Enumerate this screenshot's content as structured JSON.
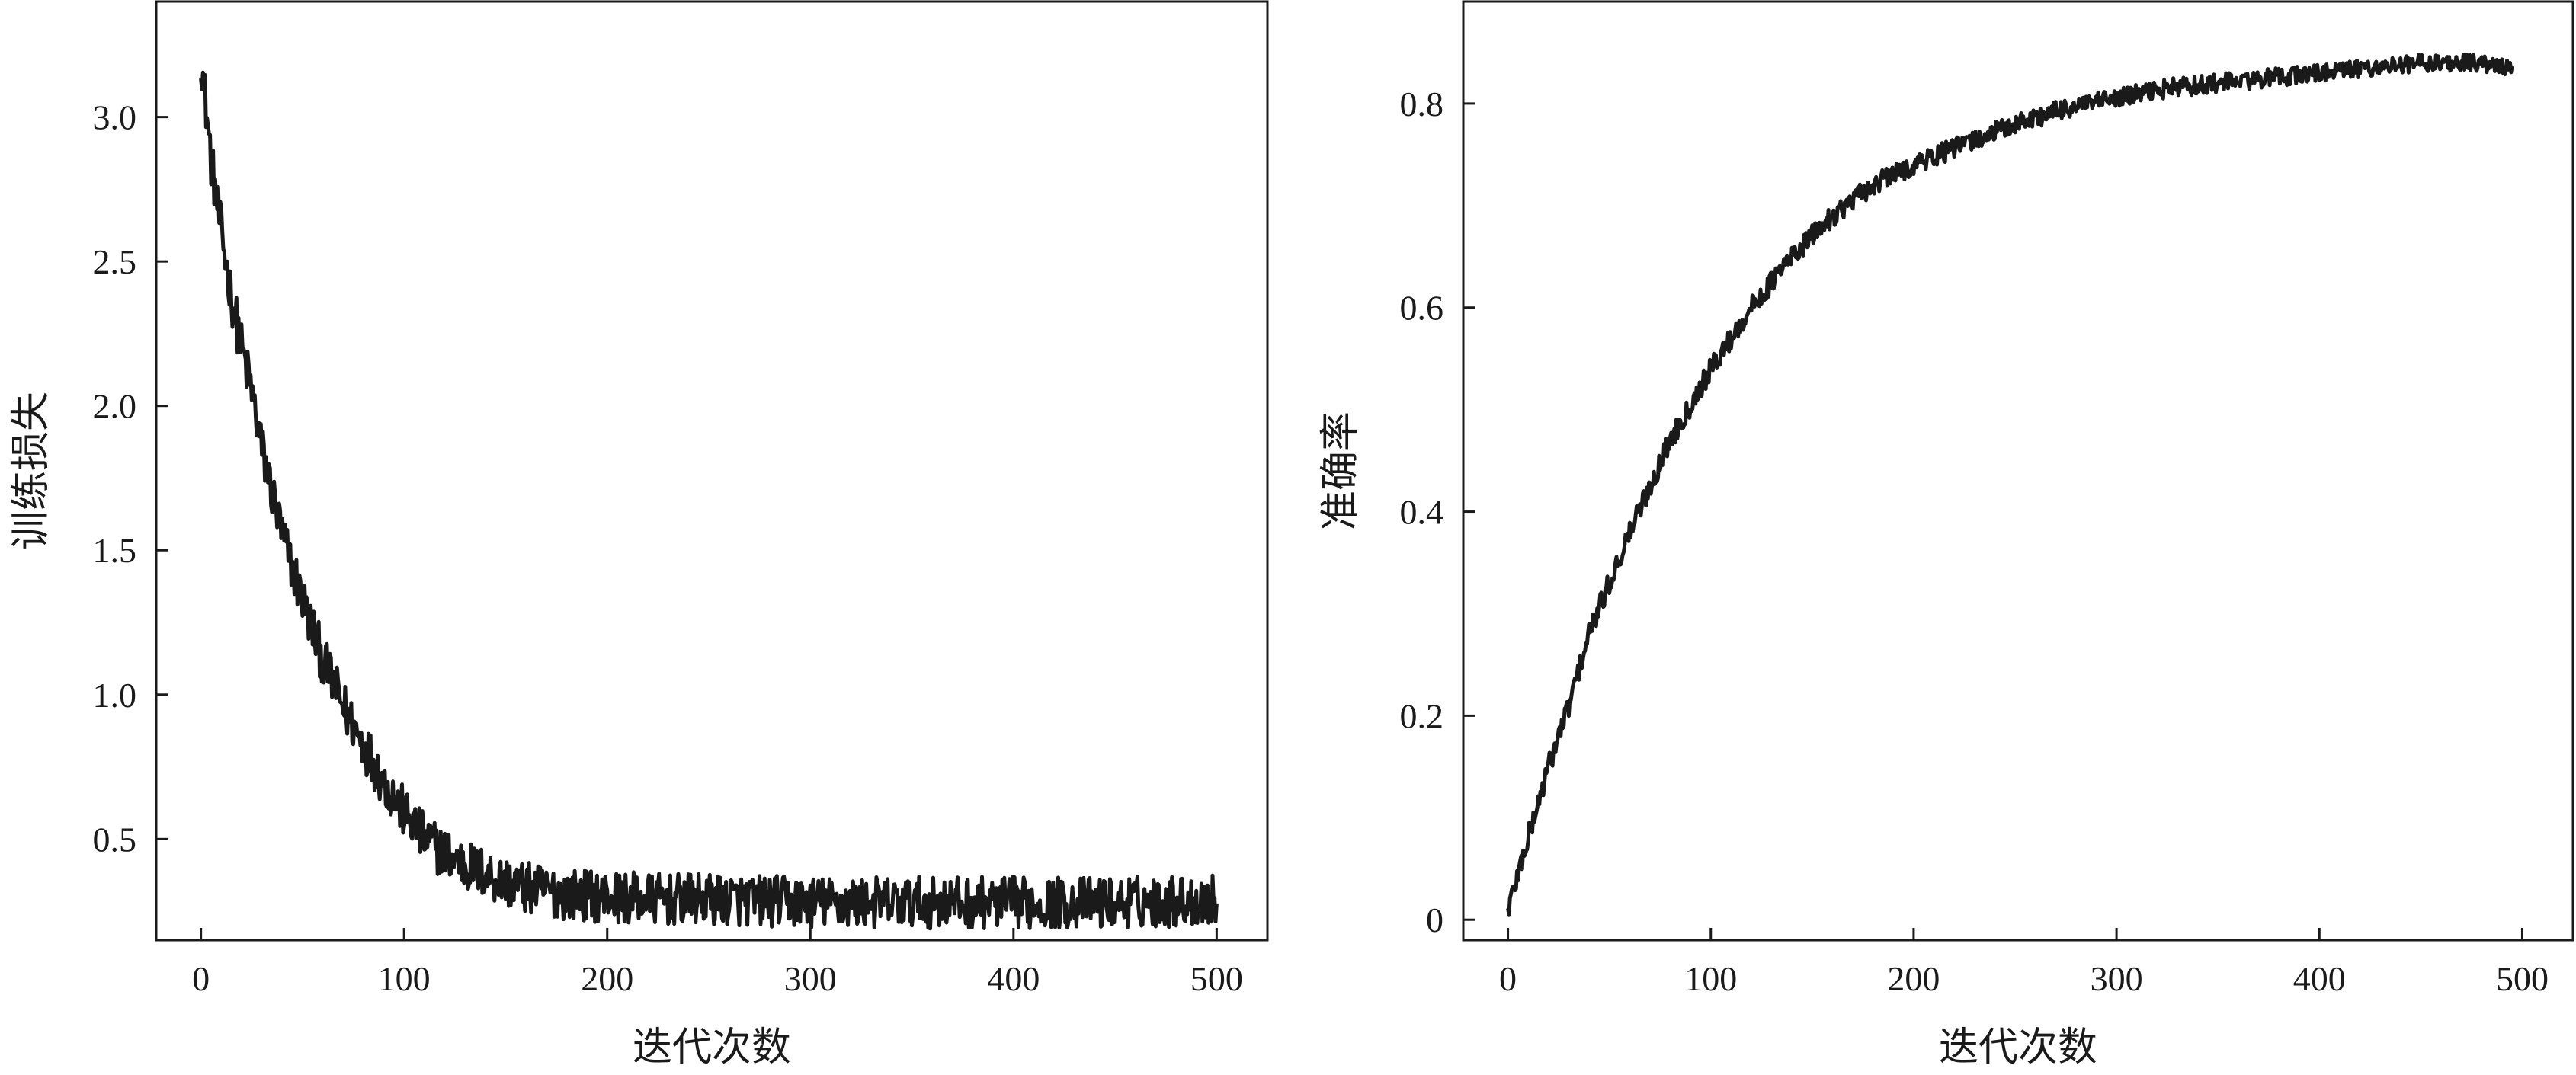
{
  "chart_data": [
    {
      "type": "line",
      "title": "",
      "xlabel": "迭代次数",
      "ylabel": "训练损失",
      "xlim": [
        -22,
        525
      ],
      "ylim": [
        0.15,
        3.4
      ],
      "xticks": [
        0,
        100,
        200,
        300,
        400,
        500
      ],
      "xtick_labels": [
        "0",
        "100",
        "200",
        "300",
        "400",
        "500"
      ],
      "yticks": [
        0.5,
        1.0,
        1.5,
        2.0,
        2.5,
        3.0
      ],
      "ytick_labels": [
        "0.5",
        "1.0",
        "1.5",
        "2.0",
        "2.5",
        "3.0"
      ],
      "grid": false,
      "legend": "none",
      "line_color": "#1a1a1a",
      "trend": {
        "x": [
          0,
          5,
          10,
          15,
          20,
          25,
          30,
          40,
          50,
          60,
          70,
          80,
          90,
          100,
          110,
          120,
          130,
          140,
          150,
          160,
          170,
          180,
          200,
          230,
          260,
          300,
          350,
          400,
          450,
          500
        ],
        "y": [
          3.22,
          2.85,
          2.6,
          2.38,
          2.2,
          2.05,
          1.85,
          1.55,
          1.33,
          1.12,
          0.96,
          0.83,
          0.7,
          0.59,
          0.5,
          0.45,
          0.41,
          0.38,
          0.35,
          0.33,
          0.32,
          0.31,
          0.3,
          0.29,
          0.29,
          0.28,
          0.28,
          0.28,
          0.28,
          0.29
        ]
      },
      "noise": {
        "start": 0.09,
        "end": 0.09
      }
    },
    {
      "type": "line",
      "title": "",
      "xlabel": "迭代次数",
      "ylabel": "准确率",
      "xlim": [
        -22,
        525
      ],
      "ylim": [
        -0.02,
        0.9
      ],
      "xticks": [
        0,
        100,
        200,
        300,
        400,
        500
      ],
      "xtick_labels": [
        "0",
        "100",
        "200",
        "300",
        "400",
        "500"
      ],
      "yticks": [
        0,
        0.2,
        0.4,
        0.6,
        0.8
      ],
      "ytick_labels": [
        "0",
        "0.2",
        "0.4",
        "0.6",
        "0.8"
      ],
      "grid": false,
      "legend": "none",
      "line_color": "#1a1a1a",
      "trend": {
        "x": [
          0,
          10,
          20,
          30,
          40,
          50,
          60,
          80,
          100,
          120,
          140,
          160,
          180,
          200,
          225,
          250,
          275,
          300,
          325,
          350,
          375,
          400,
          425,
          450,
          475,
          495
        ],
        "y": [
          0.01,
          0.08,
          0.15,
          0.21,
          0.28,
          0.33,
          0.38,
          0.47,
          0.54,
          0.6,
          0.65,
          0.69,
          0.72,
          0.74,
          0.76,
          0.78,
          0.795,
          0.805,
          0.815,
          0.82,
          0.825,
          0.83,
          0.835,
          0.84,
          0.84,
          0.835
        ]
      },
      "noise": {
        "start": 0.012,
        "end": 0.008
      }
    }
  ]
}
